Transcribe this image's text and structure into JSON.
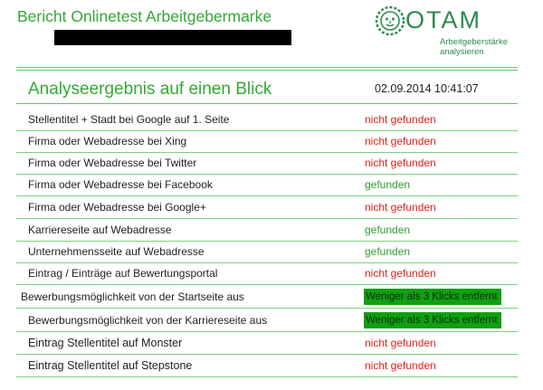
{
  "header": {
    "title": "Bericht Onlinetest Arbeitgebermarke",
    "logo_name": "OTAM",
    "logo_tagline_1": "Arbeitgeberstärke",
    "logo_tagline_2": "analysieren"
  },
  "summary": {
    "heading": "Analyseergebnis auf einen Blick",
    "datetime": "02.09.2014 10:41:07"
  },
  "colors": {
    "accent_green": "#35a835",
    "status_red": "#e3201c",
    "status_green": "#2f9d2f",
    "box_green": "#10a010"
  },
  "rows": [
    {
      "label": "Stellentitel + Stadt bei Google auf 1. Seite",
      "value": "nicht gefunden",
      "status": "red"
    },
    {
      "label": "Firma oder Webadresse bei Xing",
      "value": "nicht gefunden",
      "status": "red"
    },
    {
      "label": "Firma oder Webadresse bei Twitter",
      "value": "nicht gefunden",
      "status": "red"
    },
    {
      "label": "Firma oder Webadresse bei Facebook",
      "value": "gefunden",
      "status": "green"
    },
    {
      "label": "Firma oder Webadresse bei Google+",
      "value": "nicht gefunden",
      "status": "red"
    },
    {
      "label": "Karriereseite auf Webadresse",
      "value": "gefunden",
      "status": "green"
    },
    {
      "label": "Unternehmensseite auf Webadresse",
      "value": "gefunden",
      "status": "green"
    },
    {
      "label": "Eintrag / Einträge auf Bewertungsportal",
      "value": "nicht gefunden",
      "status": "red"
    },
    {
      "label": "Bewerbungsmöglichkeit von der Startseite aus",
      "value": "Weniger als 3 Klicks entfernt",
      "status": "box"
    },
    {
      "label": "Bewerbungsmöglichkeit von der Karriereseite aus",
      "value": "Weniger als 3 Klicks entfernt",
      "status": "box"
    },
    {
      "label": "Eintrag Stellentitel auf Monster",
      "value": "nicht gefunden",
      "status": "red"
    },
    {
      "label": "Eintrag Stellentitel auf Stepstone",
      "value": "nicht gefunden",
      "status": "red"
    }
  ]
}
